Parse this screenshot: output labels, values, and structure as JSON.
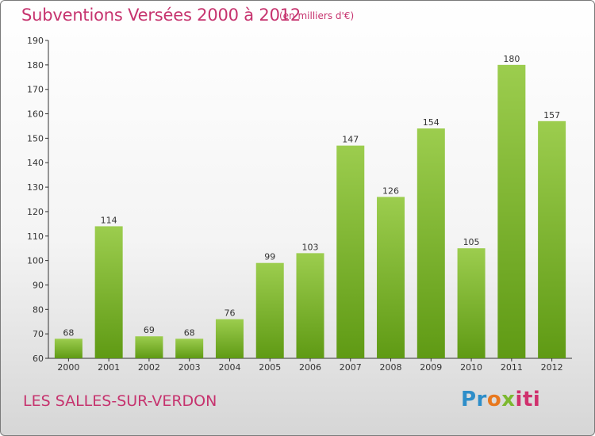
{
  "header": {
    "title": "Subventions Versées 2000 à 2012",
    "unit": "(en milliers d'€)"
  },
  "footer": {
    "commune": "LES SALLES-SUR-VERDON",
    "logo": [
      "Pr",
      "o",
      "x",
      "iti"
    ]
  },
  "colors": {
    "bar_top": "#9ccd4e",
    "bar_bottom": "#5f9a14",
    "title": "#c6336e"
  },
  "chart_data": {
    "type": "bar",
    "title": "Subventions Versées 2000 à 2012",
    "subtitle": "(en milliers d'€)",
    "categories": [
      "2000",
      "2001",
      "2002",
      "2003",
      "2004",
      "2005",
      "2006",
      "2007",
      "2008",
      "2009",
      "2010",
      "2011",
      "2012"
    ],
    "values": [
      68,
      114,
      69,
      68,
      76,
      99,
      103,
      147,
      126,
      154,
      105,
      180,
      157
    ],
    "ylim": [
      60,
      190
    ],
    "yticks": [
      60,
      70,
      80,
      90,
      100,
      110,
      120,
      130,
      140,
      150,
      160,
      170,
      180,
      190
    ],
    "grid": false,
    "legend": "none"
  }
}
